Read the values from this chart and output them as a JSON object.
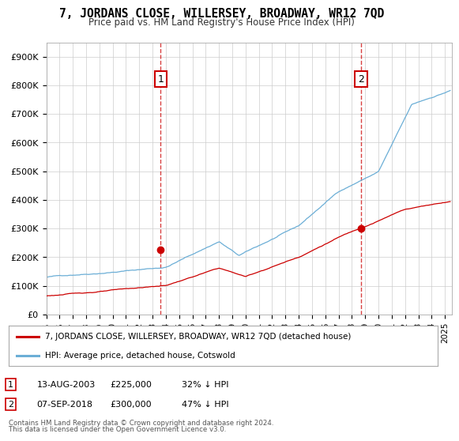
{
  "title": "7, JORDANS CLOSE, WILLERSEY, BROADWAY, WR12 7QD",
  "subtitle": "Price paid vs. HM Land Registry's House Price Index (HPI)",
  "ylabel_ticks": [
    "£0",
    "£100K",
    "£200K",
    "£300K",
    "£400K",
    "£500K",
    "£600K",
    "£700K",
    "£800K",
    "£900K"
  ],
  "ytick_values": [
    0,
    100000,
    200000,
    300000,
    400000,
    500000,
    600000,
    700000,
    800000,
    900000
  ],
  "ylim": [
    0,
    950000
  ],
  "xlim_start": 1995.0,
  "xlim_end": 2025.5,
  "sale1": {
    "date_num": 2003.617,
    "price": 225000,
    "label": "1",
    "date_str": "13-AUG-2003",
    "price_str": "£225,000",
    "below": "32% ↓ HPI"
  },
  "sale2": {
    "date_num": 2018.678,
    "price": 300000,
    "label": "2",
    "date_str": "07-SEP-2018",
    "price_str": "£300,000",
    "below": "47% ↓ HPI"
  },
  "hpi_color": "#6baed6",
  "price_color": "#cc0000",
  "legend_label_price": "7, JORDANS CLOSE, WILLERSEY, BROADWAY, WR12 7QD (detached house)",
  "legend_label_hpi": "HPI: Average price, detached house, Cotswold",
  "footer1": "Contains HM Land Registry data © Crown copyright and database right 2024.",
  "footer2": "This data is licensed under the Open Government Licence v3.0.",
  "xtick_years": [
    1995,
    1996,
    1997,
    1998,
    1999,
    2000,
    2001,
    2002,
    2003,
    2004,
    2005,
    2006,
    2007,
    2008,
    2009,
    2010,
    2011,
    2012,
    2013,
    2014,
    2015,
    2016,
    2017,
    2018,
    2019,
    2020,
    2021,
    2022,
    2023,
    2024,
    2025
  ],
  "background_color": "#ffffff",
  "grid_color": "#cccccc"
}
